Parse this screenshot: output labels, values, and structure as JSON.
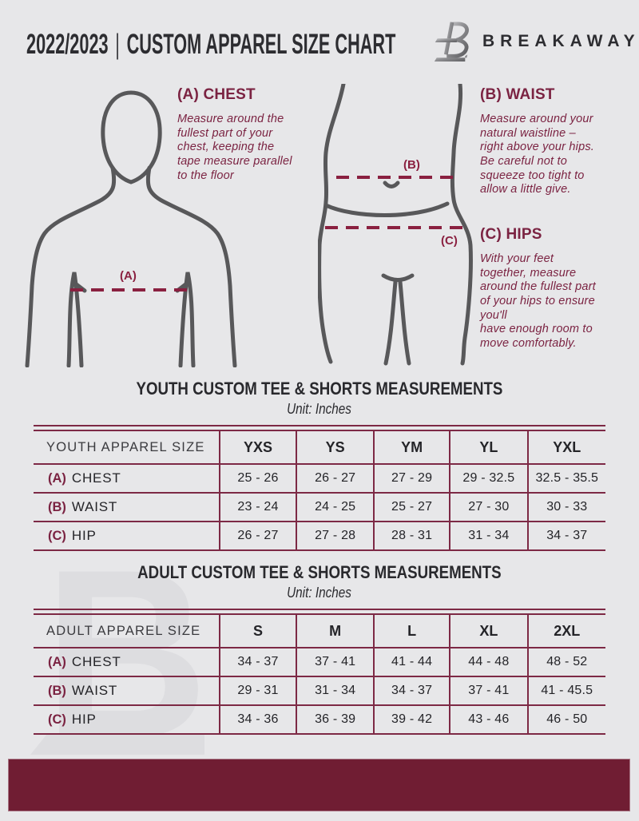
{
  "header": {
    "title_left": "2022/2023",
    "title_separator": "|",
    "title_right": "CUSTOM APPAREL SIZE CHART",
    "brand": "BREAKAWAY"
  },
  "measure_guide": {
    "chest": {
      "heading": "(A) CHEST",
      "body": "Measure around the\nfullest part of your\nchest, keeping the\ntape measure parallel\nto the floor",
      "marker_label": "(A)"
    },
    "waist": {
      "heading": "(B) WAIST",
      "body": "Measure around your\nnatural waistline –\nright above your hips.\nBe careful not to\nsqueeze too tight to\nallow a little give.",
      "marker_label": "(B)"
    },
    "hips": {
      "heading": "(C) HIPS",
      "body": "With your feet\ntogether, measure\naround the fullest part\nof your hips to ensure\nyou'll\nhave enough room to\nmove comfortably.",
      "marker_label": "(C)"
    }
  },
  "youth_section": {
    "title": "YOUTH CUSTOM TEE & SHORTS MEASUREMENTS",
    "subtitle": "Unit: Inches",
    "size_label_header": "YOUTH APPAREL SIZE",
    "sizes": [
      "YXS",
      "YS",
      "YM",
      "YL",
      "YXL"
    ],
    "rows": [
      {
        "key": "(A)",
        "label": "CHEST",
        "values": [
          "25 - 26",
          "26 - 27",
          "27 - 29",
          "29 - 32.5",
          "32.5 - 35.5"
        ]
      },
      {
        "key": "(B)",
        "label": "WAIST",
        "values": [
          "23 - 24",
          "24 - 25",
          "25 - 27",
          "27 - 30",
          "30 - 33"
        ]
      },
      {
        "key": "(C)",
        "label": "HIP",
        "values": [
          "26 - 27",
          "27 - 28",
          "28 - 31",
          "31 - 34",
          "34 - 37"
        ]
      }
    ]
  },
  "adult_section": {
    "title": "ADULT CUSTOM TEE & SHORTS MEASUREMENTS",
    "subtitle": "Unit: Inches",
    "size_label_header": "ADULT APPAREL SIZE",
    "sizes": [
      "S",
      "M",
      "L",
      "XL",
      "2XL"
    ],
    "rows": [
      {
        "key": "(A)",
        "label": "CHEST",
        "values": [
          "34 - 37",
          "37 - 41",
          "41 - 44",
          "44 - 48",
          "48 - 52"
        ]
      },
      {
        "key": "(B)",
        "label": "WAIST",
        "values": [
          "29 - 31",
          "31 - 34",
          "34 - 37",
          "37 - 41",
          "41 - 45.5"
        ]
      },
      {
        "key": "(C)",
        "label": "HIP",
        "values": [
          "34 - 36",
          "36 - 39",
          "39 - 42",
          "43 - 46",
          "46 - 50"
        ]
      }
    ]
  },
  "watermark_letter": "B",
  "colors": {
    "maroon_text": "#7b2342",
    "dashed_line": "#8a2040",
    "table_border": "#7d2945",
    "footer_bar": "#701d33",
    "figure_stroke": "#58585a",
    "background": "#e7e7e9",
    "ink": "#2d2d31",
    "watermark": "#dddde0"
  }
}
